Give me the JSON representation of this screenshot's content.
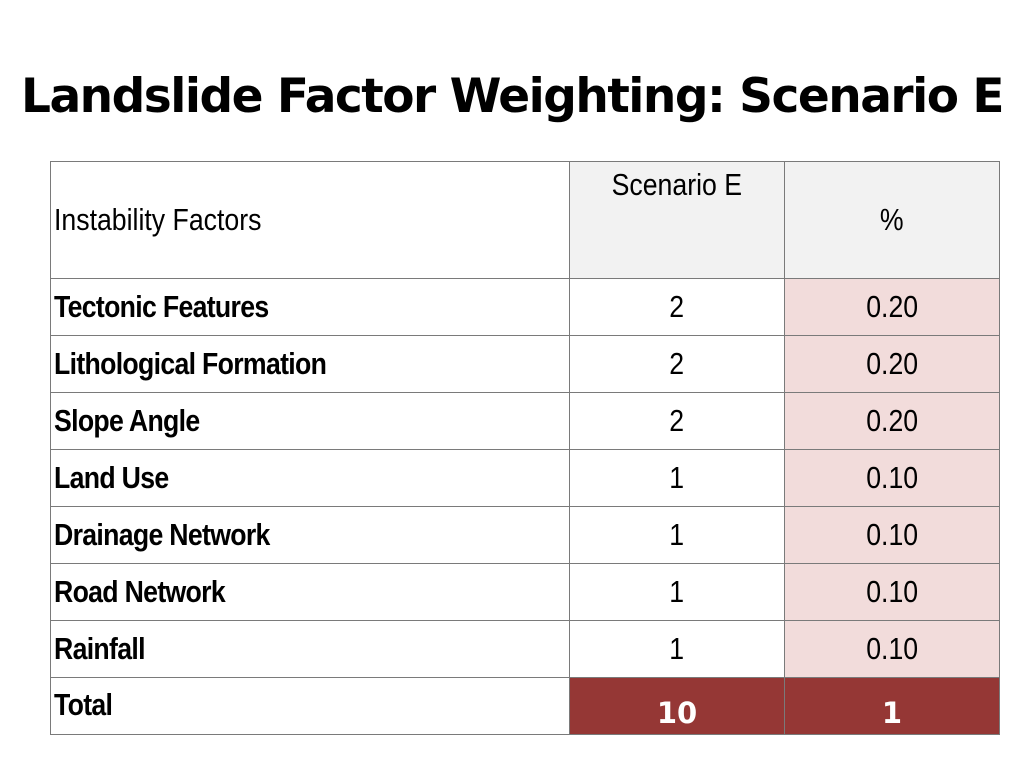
{
  "title": "Landslide Factor Weighting: Scenario E",
  "table": {
    "headers": {
      "factor": "Instability Factors",
      "scenario": "Scenario E",
      "percent": "%"
    },
    "rows": [
      {
        "factor": "Tectonic Features",
        "weight": "2",
        "percent": "0.20"
      },
      {
        "factor": "Lithological Formation",
        "weight": "2",
        "percent": "0.20"
      },
      {
        "factor": "Slope Angle",
        "weight": "2",
        "percent": "0.20"
      },
      {
        "factor": "Land Use",
        "weight": "1",
        "percent": "0.10"
      },
      {
        "factor": "Drainage Network",
        "weight": "1",
        "percent": "0.10"
      },
      {
        "factor": "Road Network",
        "weight": "1",
        "percent": "0.10"
      },
      {
        "factor": "Rainfall",
        "weight": "1",
        "percent": "0.10"
      }
    ],
    "total": {
      "label": "Total",
      "weight": "10",
      "percent": "1"
    }
  },
  "colors": {
    "header_fill": "#f2f2f2",
    "percent_fill": "#f2dcdb",
    "total_fill": "#953735",
    "border": "#7a7a7a"
  }
}
